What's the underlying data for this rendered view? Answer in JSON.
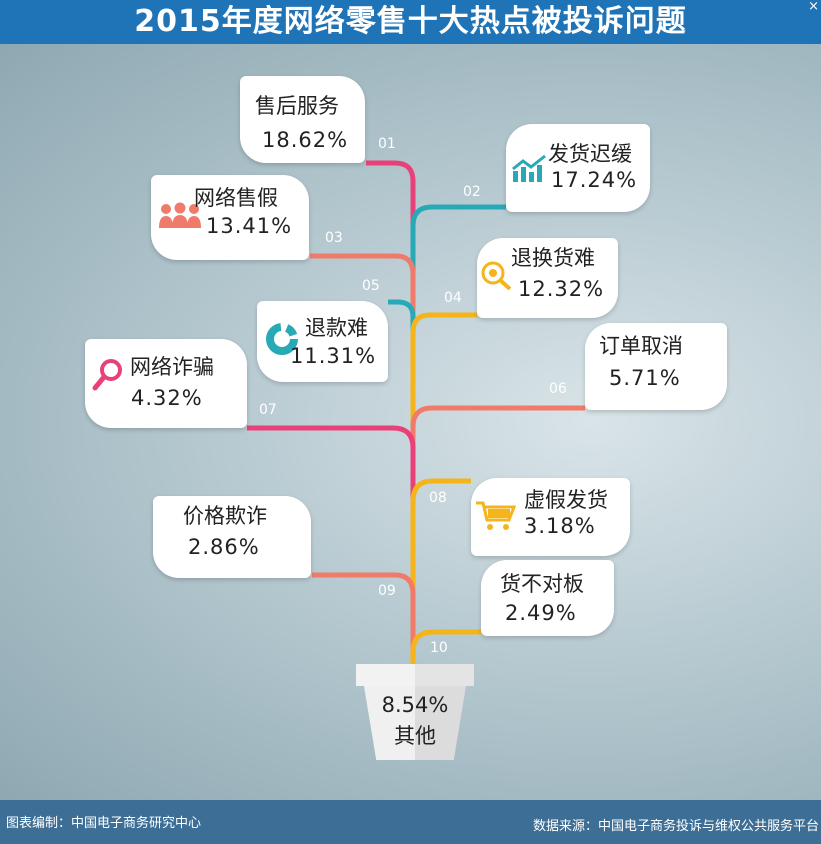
{
  "title": "2015年度网络零售十大热点被投诉问题",
  "close_glyph": "×",
  "footer": {
    "compiled_by": "图表编制：中国电子商务研究中心",
    "source": "数据来源：中国电子商务投诉与维权公共服务平台"
  },
  "colors": {
    "header": "#1f73b7",
    "footer": "#3d6f96",
    "pink": "#e8417a",
    "teal": "#28a9b6",
    "salmon": "#f07b6a",
    "yellow": "#f4b41a"
  },
  "chart_data": {
    "type": "bar",
    "title": "2015年度网络零售十大热点被投诉问题",
    "categories": [
      "售后服务",
      "发货迟缓",
      "网络售假",
      "退换货难",
      "退款难",
      "订单取消",
      "网络诈骗",
      "虚假发货",
      "价格欺诈",
      "货不对板",
      "其他"
    ],
    "numbers": [
      "01",
      "02",
      "03",
      "04",
      "05",
      "06",
      "07",
      "08",
      "09",
      "10",
      ""
    ],
    "values": [
      18.62,
      17.24,
      13.41,
      12.32,
      11.31,
      5.71,
      4.32,
      3.18,
      2.86,
      2.49,
      8.54
    ],
    "labels": [
      "18.62%",
      "17.24%",
      "13.41%",
      "12.32%",
      "11.31%",
      "5.71%",
      "4.32%",
      "3.18%",
      "2.86%",
      "2.49%",
      "8.54%"
    ],
    "unit": "%"
  },
  "icons": {
    "c1": "",
    "c2": "chart-trend-icon",
    "c3": "people-icon",
    "c4": "target-icon",
    "c5": "pie-chart-icon",
    "c6": "",
    "c7": "magnifier-icon",
    "c8": "shopping-cart-icon",
    "c9": "",
    "c10": ""
  }
}
